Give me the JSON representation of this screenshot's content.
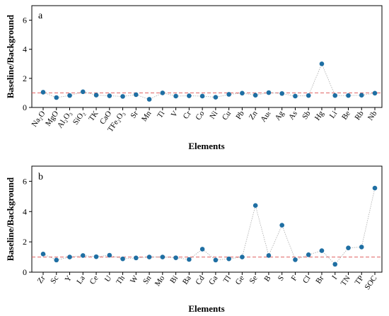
{
  "chart_data": [
    {
      "type": "scatter",
      "panel_label": "a",
      "ylabel": "Baseline/Background",
      "xlabel": "Elements",
      "ylim": [
        0,
        7
      ],
      "yticks": [
        0,
        2,
        4,
        6
      ],
      "baseline": 1,
      "grid": false,
      "categories": [
        "Na₂O",
        "MgO",
        "Al₂O₃",
        "SiO₂",
        "TK",
        "CaO",
        "TFe₂O₃",
        "Sr",
        "Mn",
        "Ti",
        "V",
        "Cr",
        "Co",
        "Ni",
        "Cu",
        "Pb",
        "Zn",
        "Auₜ",
        "Ag",
        "As",
        "Sb",
        "Hg",
        "Li",
        "Be",
        "Rb",
        "Nb"
      ],
      "values": [
        1.05,
        0.68,
        0.82,
        1.08,
        0.85,
        0.8,
        0.76,
        0.88,
        0.56,
        1.0,
        0.78,
        0.8,
        0.78,
        0.7,
        0.9,
        0.98,
        0.84,
        1.02,
        0.96,
        0.78,
        0.82,
        3.0,
        0.82,
        0.82,
        0.84,
        0.98
      ],
      "colors": {
        "marker": "#1f6fa3",
        "baseline": "#e06060",
        "connector": "#aaaaaa"
      }
    },
    {
      "type": "scatter",
      "panel_label": "b",
      "ylabel": "Baseline/Background",
      "xlabel": "Elements",
      "ylim": [
        0,
        7
      ],
      "yticks": [
        0,
        2,
        4,
        6
      ],
      "baseline": 1,
      "grid": false,
      "categories": [
        "Zr",
        "Sc",
        "Y",
        "La",
        "Ce",
        "U",
        "Th",
        "W",
        "Sn",
        "Mo",
        "Bi",
        "Ba",
        "Cd",
        "Ga",
        "Tl",
        "Ge",
        "Se",
        "B",
        "S",
        "F",
        "Cl",
        "Br",
        "I",
        "TN",
        "TP",
        "SOC"
      ],
      "values": [
        1.2,
        0.8,
        1.0,
        1.1,
        1.02,
        1.12,
        0.88,
        0.94,
        1.0,
        1.0,
        0.95,
        0.84,
        1.52,
        0.8,
        0.88,
        1.0,
        4.4,
        1.1,
        3.1,
        0.82,
        1.15,
        1.42,
        0.52,
        1.6,
        1.66,
        5.55
      ],
      "colors": {
        "marker": "#1f6fa3",
        "baseline": "#e06060",
        "connector": "#aaaaaa"
      }
    }
  ]
}
